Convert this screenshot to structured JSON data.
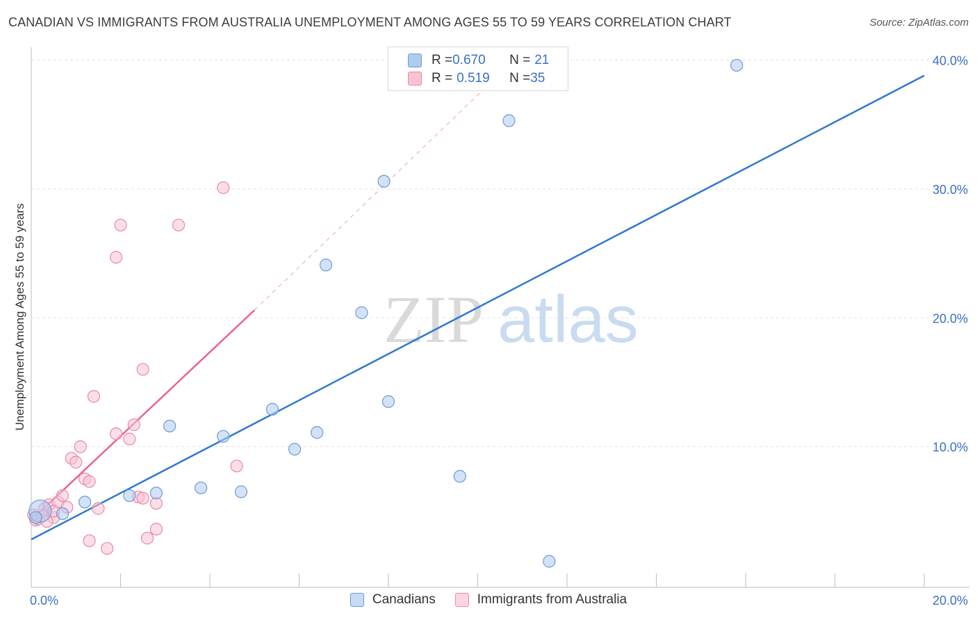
{
  "title": "CANADIAN VS IMMIGRANTS FROM AUSTRALIA UNEMPLOYMENT AMONG AGES 55 TO 59 YEARS CORRELATION CHART",
  "source": "Source: ZipAtlas.com",
  "watermark": {
    "zip": "ZIP",
    "atlas": "atlas"
  },
  "legend_top": [
    {
      "r_label": "R = ",
      "r_value": "0.670",
      "n_label": "N = ",
      "n_value": "21"
    },
    {
      "r_label": "R = ",
      "r_value": "0.519",
      "n_label": "N = ",
      "n_value": "35"
    }
  ],
  "colors": {
    "blue_fill": "#aecbf0",
    "blue_stroke": "#6d9ad6",
    "blue_line": "#2f78d0",
    "pink_fill": "#f8c3d3",
    "pink_stroke": "#e889a6",
    "pink_line": "#e8628f",
    "grid": "#e2e2e2",
    "tick_text": "#3a6fc4"
  },
  "chart_data": {
    "type": "scatter",
    "title": "CANADIAN VS IMMIGRANTS FROM AUSTRALIA UNEMPLOYMENT AMONG AGES 55 TO 59 YEARS CORRELATION CHART",
    "xlabel": "",
    "ylabel": "Unemployment Among Ages 55 to 59 years",
    "xlim": [
      0,
      20
    ],
    "ylim": [
      0,
      41
    ],
    "x_tick_labels": [
      "0.0%",
      "20.0%"
    ],
    "y_ticks": [
      10,
      20,
      30,
      40
    ],
    "y_tick_labels": [
      "10.0%",
      "20.0%",
      "30.0%",
      "40.0%"
    ],
    "legend_position": "bottom-center",
    "series": [
      {
        "name": "Canadians",
        "color": "#6d9ad6",
        "points": [
          {
            "x": 0.2,
            "y": 5.0,
            "big": true
          },
          {
            "x": 0.7,
            "y": 4.8
          },
          {
            "x": 1.2,
            "y": 5.7
          },
          {
            "x": 2.2,
            "y": 6.2
          },
          {
            "x": 2.8,
            "y": 6.4
          },
          {
            "x": 3.1,
            "y": 11.6
          },
          {
            "x": 3.8,
            "y": 6.8
          },
          {
            "x": 4.3,
            "y": 10.8
          },
          {
            "x": 4.7,
            "y": 6.5
          },
          {
            "x": 5.4,
            "y": 12.9
          },
          {
            "x": 5.9,
            "y": 9.8
          },
          {
            "x": 6.4,
            "y": 11.1
          },
          {
            "x": 6.6,
            "y": 24.1
          },
          {
            "x": 7.4,
            "y": 20.4
          },
          {
            "x": 7.9,
            "y": 30.6
          },
          {
            "x": 8.0,
            "y": 13.5
          },
          {
            "x": 9.6,
            "y": 7.7
          },
          {
            "x": 10.7,
            "y": 35.3
          },
          {
            "x": 11.6,
            "y": 1.1
          },
          {
            "x": 15.8,
            "y": 39.6
          },
          {
            "x": 0.1,
            "y": 4.5
          }
        ],
        "trend": {
          "x0": 0,
          "y0": 2.8,
          "x1": 20,
          "y1": 38.8
        }
      },
      {
        "name": "Immigrants from Australia",
        "color": "#e889a6",
        "points": [
          {
            "x": 0.05,
            "y": 4.7
          },
          {
            "x": 0.1,
            "y": 4.3
          },
          {
            "x": 0.3,
            "y": 5.2
          },
          {
            "x": 0.4,
            "y": 5.5
          },
          {
            "x": 0.5,
            "y": 4.5
          },
          {
            "x": 0.6,
            "y": 5.7
          },
          {
            "x": 0.7,
            "y": 6.2
          },
          {
            "x": 0.8,
            "y": 5.3
          },
          {
            "x": 0.9,
            "y": 9.1
          },
          {
            "x": 1.0,
            "y": 8.8
          },
          {
            "x": 1.1,
            "y": 10.0
          },
          {
            "x": 1.2,
            "y": 7.5
          },
          {
            "x": 1.3,
            "y": 2.7
          },
          {
            "x": 1.3,
            "y": 7.3
          },
          {
            "x": 1.4,
            "y": 13.9
          },
          {
            "x": 1.5,
            "y": 5.2
          },
          {
            "x": 1.7,
            "y": 2.1
          },
          {
            "x": 1.9,
            "y": 11.0
          },
          {
            "x": 1.9,
            "y": 24.7
          },
          {
            "x": 2.0,
            "y": 27.2
          },
          {
            "x": 2.2,
            "y": 10.6
          },
          {
            "x": 2.3,
            "y": 11.7
          },
          {
            "x": 2.4,
            "y": 6.1
          },
          {
            "x": 2.5,
            "y": 6.0
          },
          {
            "x": 2.5,
            "y": 16.0
          },
          {
            "x": 2.6,
            "y": 2.9
          },
          {
            "x": 2.8,
            "y": 5.6
          },
          {
            "x": 2.8,
            "y": 3.6
          },
          {
            "x": 3.3,
            "y": 27.2
          },
          {
            "x": 4.3,
            "y": 30.1
          },
          {
            "x": 4.6,
            "y": 8.5
          },
          {
            "x": 0.15,
            "y": 4.4
          },
          {
            "x": 0.25,
            "y": 4.6
          },
          {
            "x": 0.35,
            "y": 4.2
          },
          {
            "x": 0.5,
            "y": 5.0
          }
        ],
        "trend": {
          "x0": 0,
          "y0": 4.3,
          "x1": 5.0,
          "y1": 20.6
        },
        "trend_extension": {
          "x0": 5.0,
          "y0": 20.6,
          "x1": 10.3,
          "y1": 38.3
        }
      }
    ]
  },
  "legend_bottom": [
    {
      "label": "Canadians"
    },
    {
      "label": "Immigrants from Australia"
    }
  ]
}
